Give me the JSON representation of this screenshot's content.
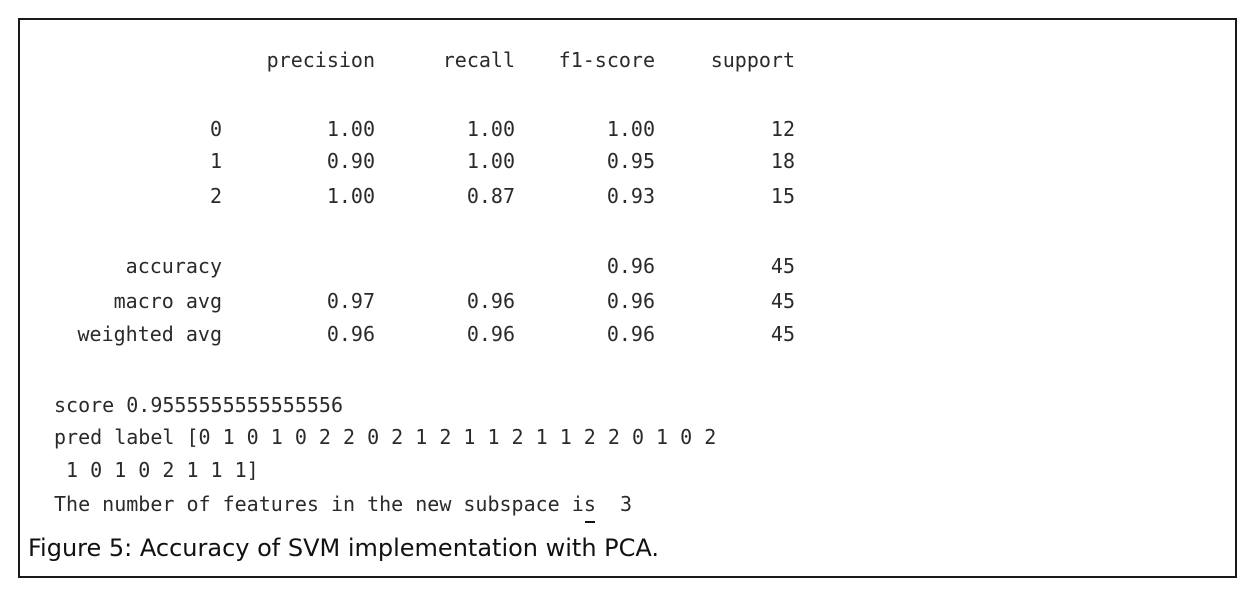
{
  "report": {
    "headers": [
      "precision",
      "recall",
      "f1-score",
      "support"
    ],
    "rows": [
      {
        "label": "0",
        "precision": "1.00",
        "recall": "1.00",
        "f1": "1.00",
        "support": "12"
      },
      {
        "label": "1",
        "precision": "0.90",
        "recall": "1.00",
        "f1": "0.95",
        "support": "18"
      },
      {
        "label": "2",
        "precision": "1.00",
        "recall": "0.87",
        "f1": "0.93",
        "support": "15"
      }
    ],
    "summary": [
      {
        "label": "accuracy",
        "precision": "",
        "recall": "",
        "f1": "0.96",
        "support": "45"
      },
      {
        "label": "macro avg",
        "precision": "0.97",
        "recall": "0.96",
        "f1": "0.96",
        "support": "45"
      },
      {
        "label": "weighted avg",
        "precision": "0.96",
        "recall": "0.96",
        "f1": "0.96",
        "support": "45"
      }
    ]
  },
  "output": {
    "score_line": "score 0.9555555555555556",
    "pred_line1": "pred label [0 1 0 1 0 2 2 0 2 1 2 1 1 2 1 1 2 2 0 1 0 2",
    "pred_line2": " 1 0 1 0 2 1 1 1]",
    "features_prefix": "The number of features in the new subspace i",
    "features_cursor_char": "s",
    "features_suffix": "  3"
  },
  "caption": "Figure 5: Accuracy of SVM implementation with PCA."
}
